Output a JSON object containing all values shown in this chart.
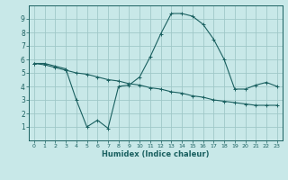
{
  "title": "",
  "xlabel": "Humidex (Indice chaleur)",
  "ylabel": "",
  "bg_color": "#c8e8e8",
  "grid_color": "#a0c8c8",
  "line_color": "#1a6060",
  "xlim": [
    -0.5,
    23.5
  ],
  "ylim": [
    0,
    10
  ],
  "yticks": [
    1,
    2,
    3,
    4,
    5,
    6,
    7,
    8,
    9
  ],
  "xticks": [
    0,
    1,
    2,
    3,
    4,
    5,
    6,
    7,
    8,
    9,
    10,
    11,
    12,
    13,
    14,
    15,
    16,
    17,
    18,
    19,
    20,
    21,
    22,
    23
  ],
  "series1_x": [
    0,
    1,
    2,
    3,
    4,
    5,
    6,
    7,
    8,
    9,
    10,
    11,
    12,
    13,
    14,
    15,
    16,
    17,
    18,
    19,
    20,
    21,
    22,
    23
  ],
  "series1_y": [
    5.7,
    5.7,
    5.5,
    5.3,
    3.0,
    1.0,
    1.5,
    0.9,
    4.0,
    4.1,
    4.7,
    6.2,
    7.9,
    9.4,
    9.4,
    9.2,
    8.6,
    7.5,
    6.0,
    3.8,
    3.8,
    4.1,
    4.3,
    4.0
  ],
  "series2_x": [
    0,
    1,
    2,
    3,
    4,
    5,
    6,
    7,
    8,
    9,
    10,
    11,
    12,
    13,
    14,
    15,
    16,
    17,
    18,
    19,
    20,
    21,
    22,
    23
  ],
  "series2_y": [
    5.7,
    5.6,
    5.4,
    5.2,
    5.0,
    4.9,
    4.7,
    4.5,
    4.4,
    4.2,
    4.1,
    3.9,
    3.8,
    3.6,
    3.5,
    3.3,
    3.2,
    3.0,
    2.9,
    2.8,
    2.7,
    2.6,
    2.6,
    2.6
  ],
  "marker_size": 2.5,
  "linewidth": 0.8
}
